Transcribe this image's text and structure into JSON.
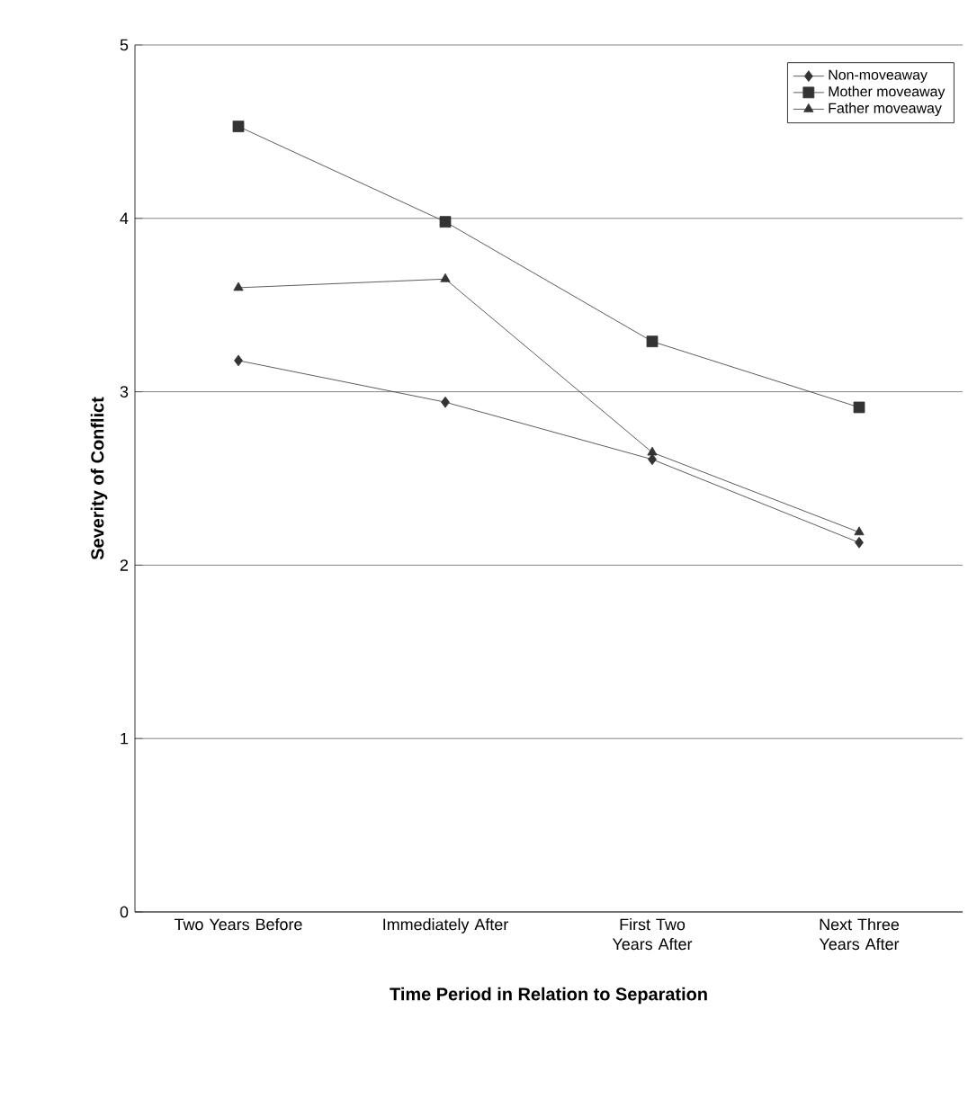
{
  "chart_data": {
    "type": "line",
    "xlabel": "Time Period in Relation to Separation",
    "ylabel": "Severity of Conflict",
    "categories": [
      "Two Years Before",
      "Immediately After",
      "First Two Years After",
      "Next Three Years After"
    ],
    "series": [
      {
        "name": "Non-moveaway",
        "color": "#333333",
        "marker": "diamond",
        "values": [
          3.18,
          2.94,
          2.61,
          2.13
        ]
      },
      {
        "name": "Mother moveaway",
        "color": "#333333",
        "marker": "square",
        "values": [
          4.53,
          3.98,
          3.29,
          2.91
        ]
      },
      {
        "name": "Father moveaway",
        "color": "#333333",
        "marker": "triangle",
        "values": [
          3.6,
          3.65,
          2.65,
          2.19
        ]
      }
    ],
    "ylim": [
      0,
      5
    ],
    "yticks": [
      0,
      1,
      2,
      3,
      4,
      5
    ],
    "grid": "y",
    "legend": "top right",
    "line_style": "solid"
  }
}
